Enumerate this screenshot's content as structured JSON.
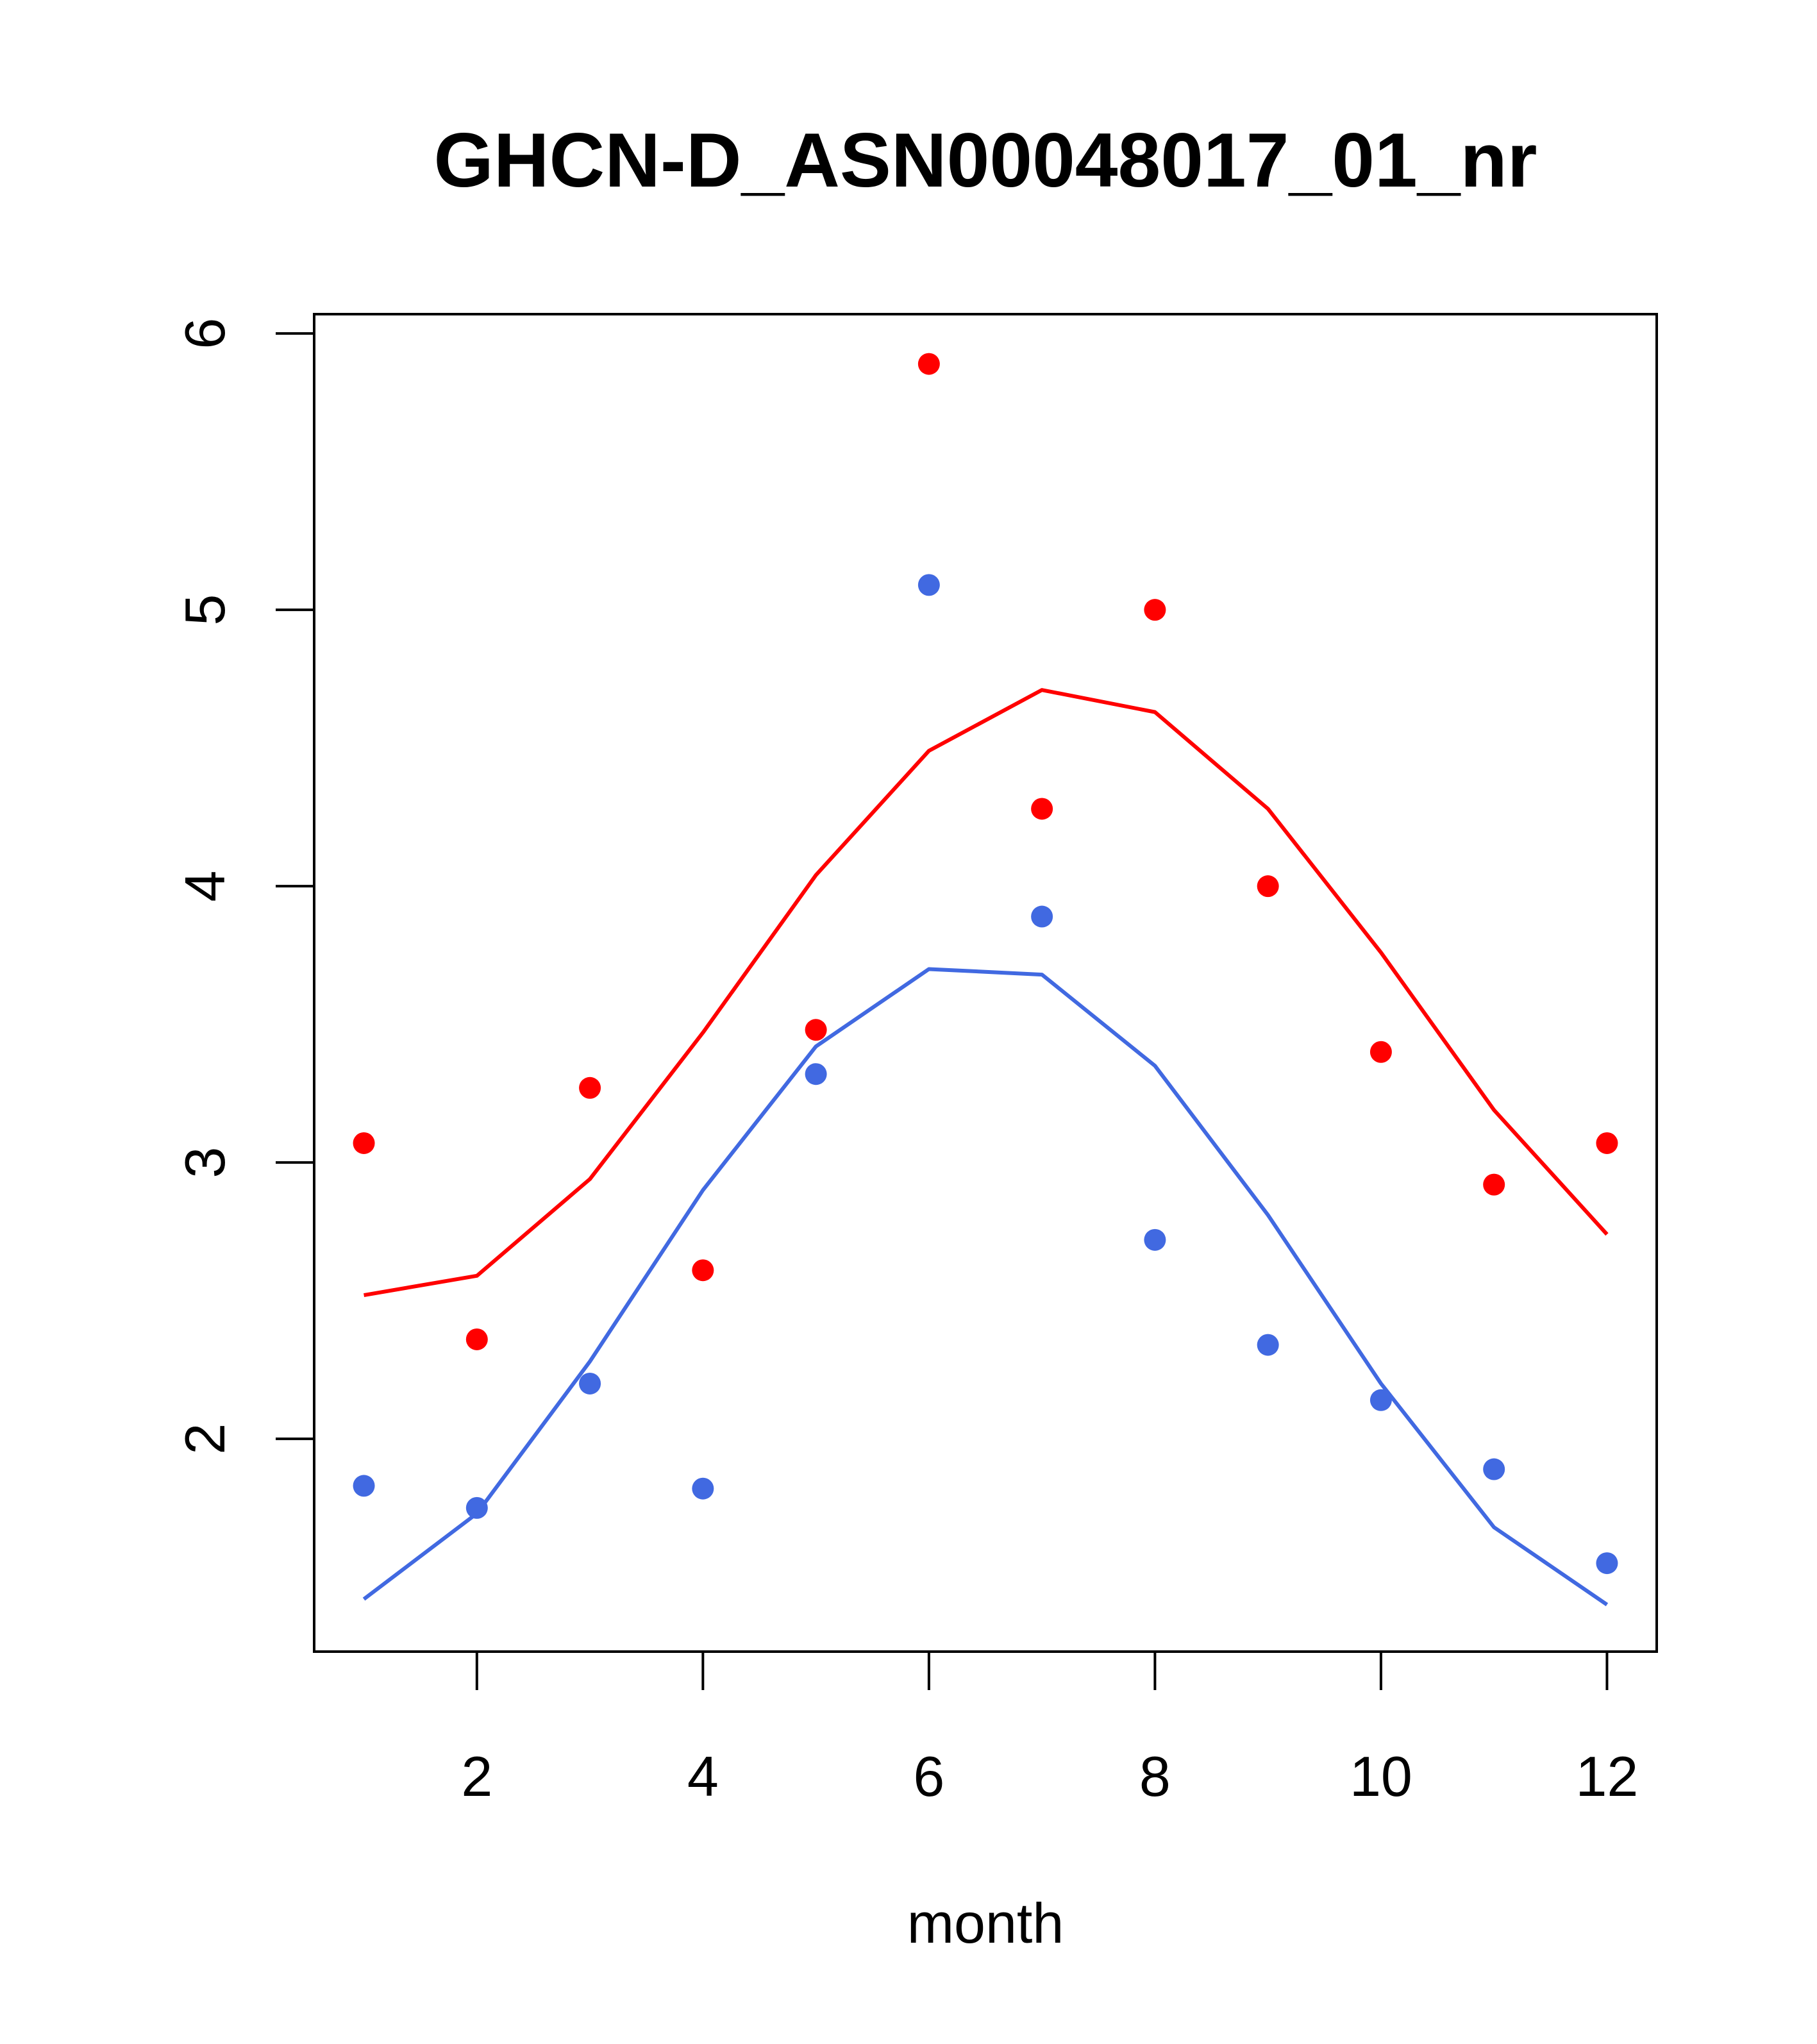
{
  "chart_data": {
    "type": "scatter",
    "title": "GHCN-D_ASN00048017_01_nr",
    "xlabel": "month",
    "ylabel": "",
    "xlim": [
      0.56,
      12.44
    ],
    "ylim": [
      1.23,
      6.07
    ],
    "xticks": [
      2,
      4,
      6,
      8,
      10,
      12
    ],
    "xtick_labels": [
      "2",
      "4",
      "6",
      "8",
      "10",
      "12"
    ],
    "yticks": [
      2,
      3,
      4,
      5,
      6
    ],
    "ytick_labels": [
      "2",
      "3",
      "4",
      "5",
      "6"
    ],
    "grid": false,
    "x": [
      1,
      2,
      3,
      4,
      5,
      6,
      7,
      8,
      9,
      10,
      11,
      12
    ],
    "series": [
      {
        "color": "#ff0000",
        "points": [
          3.07,
          2.36,
          3.27,
          2.61,
          3.48,
          5.89,
          4.28,
          5.0,
          4.0,
          3.4,
          2.92,
          3.07
        ],
        "line": [
          2.52,
          2.59,
          2.94,
          3.47,
          4.04,
          4.49,
          4.71,
          4.63,
          4.28,
          3.76,
          3.19,
          2.74
        ]
      },
      {
        "color": "#4169e1",
        "points": [
          1.83,
          1.75,
          2.2,
          1.82,
          3.32,
          5.09,
          3.89,
          2.72,
          2.34,
          2.14,
          1.89,
          1.55
        ],
        "line": [
          1.42,
          1.73,
          2.28,
          2.9,
          3.42,
          3.7,
          3.68,
          3.35,
          2.81,
          2.2,
          1.68,
          1.4
        ]
      }
    ]
  }
}
